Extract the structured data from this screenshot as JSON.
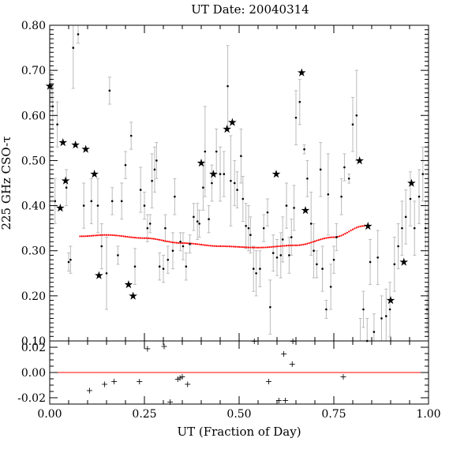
{
  "chart_data": {
    "type": "scatter",
    "title": "UT Date: 20040314",
    "xlabel": "UT (Fraction of Day)",
    "ylabel": "225 GHz CSO-τ",
    "xlim": [
      0,
      1
    ],
    "ylim": [
      0.1,
      0.8
    ],
    "resid_ylim": [
      -0.025,
      0.025
    ],
    "x_ticks": [
      "0.00",
      "0.25",
      "0.50",
      "0.75",
      "1.00"
    ],
    "y_ticks": [
      "0.10",
      "0.20",
      "0.30",
      "0.40",
      "0.50",
      "0.60",
      "0.70",
      "0.80"
    ],
    "resid_y_ticks": [
      "-0.02",
      "0.00",
      "0.02"
    ],
    "colors": {
      "fit": "#ff0000",
      "errorbar": "#bbbbbb",
      "marker": "#000000"
    },
    "points": [
      {
        "x": 0.004,
        "y": 0.665,
        "e": 0.03
      },
      {
        "x": 0.008,
        "y": 0.62,
        "e": 0.05
      },
      {
        "x": 0.014,
        "y": 0.41,
        "e": 0.05
      },
      {
        "x": 0.02,
        "y": 0.58,
        "e": 0.05
      },
      {
        "x": 0.044,
        "y": 0.44,
        "e": 0.04
      },
      {
        "x": 0.05,
        "y": 0.275,
        "e": 0.02
      },
      {
        "x": 0.055,
        "y": 0.28,
        "e": 0.03
      },
      {
        "x": 0.062,
        "y": 0.75,
        "e": 0.09
      },
      {
        "x": 0.075,
        "y": 0.78,
        "e": 0.02
      },
      {
        "x": 0.09,
        "y": 0.4,
        "e": 0.05
      },
      {
        "x": 0.11,
        "y": 0.41,
        "e": 0.05
      },
      {
        "x": 0.127,
        "y": 0.4,
        "e": 0.06
      },
      {
        "x": 0.137,
        "y": 0.31,
        "e": 0.05
      },
      {
        "x": 0.15,
        "y": 0.25,
        "e": 0.08
      },
      {
        "x": 0.158,
        "y": 0.655,
        "e": 0.03
      },
      {
        "x": 0.165,
        "y": 0.41,
        "e": 0.03
      },
      {
        "x": 0.18,
        "y": 0.29,
        "e": 0.02
      },
      {
        "x": 0.19,
        "y": 0.41,
        "e": 0.04
      },
      {
        "x": 0.2,
        "y": 0.49,
        "e": 0.03
      },
      {
        "x": 0.215,
        "y": 0.555,
        "e": 0.03
      },
      {
        "x": 0.225,
        "y": 0.265,
        "e": 0.04
      },
      {
        "x": 0.24,
        "y": 0.435,
        "e": 0.05
      },
      {
        "x": 0.25,
        "y": 0.4,
        "e": 0.03
      },
      {
        "x": 0.258,
        "y": 0.35,
        "e": 0.03
      },
      {
        "x": 0.265,
        "y": 0.36,
        "e": 0.02
      },
      {
        "x": 0.27,
        "y": 0.455,
        "e": 0.06
      },
      {
        "x": 0.277,
        "y": 0.48,
        "e": 0.05
      },
      {
        "x": 0.282,
        "y": 0.5,
        "e": 0.04
      },
      {
        "x": 0.29,
        "y": 0.265,
        "e": 0.03
      },
      {
        "x": 0.3,
        "y": 0.26,
        "e": 0.03
      },
      {
        "x": 0.305,
        "y": 0.35,
        "e": 0.03
      },
      {
        "x": 0.312,
        "y": 0.28,
        "e": 0.03
      },
      {
        "x": 0.325,
        "y": 0.3,
        "e": 0.04
      },
      {
        "x": 0.33,
        "y": 0.42,
        "e": 0.04
      },
      {
        "x": 0.345,
        "y": 0.32,
        "e": 0.02
      },
      {
        "x": 0.352,
        "y": 0.31,
        "e": 0.03
      },
      {
        "x": 0.36,
        "y": 0.265,
        "e": 0.03
      },
      {
        "x": 0.37,
        "y": 0.315,
        "e": 0.02
      },
      {
        "x": 0.38,
        "y": 0.375,
        "e": 0.03
      },
      {
        "x": 0.39,
        "y": 0.365,
        "e": 0.04
      },
      {
        "x": 0.395,
        "y": 0.36,
        "e": 0.03
      },
      {
        "x": 0.405,
        "y": 0.44,
        "e": 0.05
      },
      {
        "x": 0.41,
        "y": 0.52,
        "e": 0.1
      },
      {
        "x": 0.42,
        "y": 0.37,
        "e": 0.03
      },
      {
        "x": 0.428,
        "y": 0.45,
        "e": 0.04
      },
      {
        "x": 0.44,
        "y": 0.52,
        "e": 0.05
      },
      {
        "x": 0.45,
        "y": 0.47,
        "e": 0.06
      },
      {
        "x": 0.46,
        "y": 0.47,
        "e": 0.05
      },
      {
        "x": 0.47,
        "y": 0.665,
        "e": 0.09
      },
      {
        "x": 0.478,
        "y": 0.455,
        "e": 0.1
      },
      {
        "x": 0.488,
        "y": 0.45,
        "e": 0.05
      },
      {
        "x": 0.495,
        "y": 0.435,
        "e": 0.04
      },
      {
        "x": 0.505,
        "y": 0.51,
        "e": 0.06
      },
      {
        "x": 0.51,
        "y": 0.415,
        "e": 0.05
      },
      {
        "x": 0.518,
        "y": 0.355,
        "e": 0.05
      },
      {
        "x": 0.525,
        "y": 0.35,
        "e": 0.05
      },
      {
        "x": 0.53,
        "y": 0.335,
        "e": 0.04
      },
      {
        "x": 0.538,
        "y": 0.26,
        "e": 0.05
      },
      {
        "x": 0.545,
        "y": 0.25,
        "e": 0.05
      },
      {
        "x": 0.555,
        "y": 0.26,
        "e": 0.04
      },
      {
        "x": 0.565,
        "y": 0.35,
        "e": 0.03
      },
      {
        "x": 0.575,
        "y": 0.385,
        "e": 0.03
      },
      {
        "x": 0.582,
        "y": 0.175,
        "e": 0.06
      },
      {
        "x": 0.59,
        "y": 0.295,
        "e": 0.04
      },
      {
        "x": 0.6,
        "y": 0.285,
        "e": 0.04
      },
      {
        "x": 0.61,
        "y": 0.29,
        "e": 0.05
      },
      {
        "x": 0.615,
        "y": 0.325,
        "e": 0.05
      },
      {
        "x": 0.625,
        "y": 0.4,
        "e": 0.05
      },
      {
        "x": 0.632,
        "y": 0.29,
        "e": 0.04
      },
      {
        "x": 0.638,
        "y": 0.33,
        "e": 0.04
      },
      {
        "x": 0.645,
        "y": 0.395,
        "e": 0.05
      },
      {
        "x": 0.65,
        "y": 0.595,
        "e": 0.06
      },
      {
        "x": 0.66,
        "y": 0.63,
        "e": 0.05
      },
      {
        "x": 0.672,
        "y": 0.525,
        "e": 0.01
      },
      {
        "x": 0.68,
        "y": 0.46,
        "e": 0.04
      },
      {
        "x": 0.69,
        "y": 0.36,
        "e": 0.07
      },
      {
        "x": 0.697,
        "y": 0.3,
        "e": 0.06
      },
      {
        "x": 0.705,
        "y": 0.27,
        "e": 0.03
      },
      {
        "x": 0.715,
        "y": 0.48,
        "e": 0.06
      },
      {
        "x": 0.72,
        "y": 0.26,
        "e": 0.05
      },
      {
        "x": 0.73,
        "y": 0.17,
        "e": 0.02
      },
      {
        "x": 0.735,
        "y": 0.425,
        "e": 0.09
      },
      {
        "x": 0.742,
        "y": 0.22,
        "e": 0.05
      },
      {
        "x": 0.75,
        "y": 0.28,
        "e": 0.03
      },
      {
        "x": 0.757,
        "y": 0.33,
        "e": 0.03
      },
      {
        "x": 0.77,
        "y": 0.42,
        "e": 0.04
      },
      {
        "x": 0.778,
        "y": 0.485,
        "e": 0.03
      },
      {
        "x": 0.79,
        "y": 0.46,
        "e": 0.01
      },
      {
        "x": 0.8,
        "y": 0.58,
        "e": 0.06
      },
      {
        "x": 0.81,
        "y": 0.6,
        "e": 0.1
      },
      {
        "x": 0.82,
        "y": 0.09,
        "e": 0.06
      },
      {
        "x": 0.828,
        "y": 0.17,
        "e": 0.04
      },
      {
        "x": 0.838,
        "y": 0.1,
        "e": 0.05
      },
      {
        "x": 0.846,
        "y": 0.275,
        "e": 0.05
      },
      {
        "x": 0.856,
        "y": 0.12,
        "e": 0.04
      },
      {
        "x": 0.866,
        "y": 0.285,
        "e": 0.06
      },
      {
        "x": 0.876,
        "y": 0.15,
        "e": 0.05
      },
      {
        "x": 0.888,
        "y": 0.155,
        "e": 0.06
      },
      {
        "x": 0.898,
        "y": 0.17,
        "e": 0.06
      },
      {
        "x": 0.91,
        "y": 0.27,
        "e": 0.06
      },
      {
        "x": 0.92,
        "y": 0.31,
        "e": 0.05
      },
      {
        "x": 0.93,
        "y": 0.35,
        "e": 0.06
      },
      {
        "x": 0.94,
        "y": 0.375,
        "e": 0.06
      },
      {
        "x": 0.952,
        "y": 0.415,
        "e": 0.06
      },
      {
        "x": 0.963,
        "y": 0.35,
        "e": 0.06
      },
      {
        "x": 0.975,
        "y": 0.42,
        "e": 0.06
      },
      {
        "x": 0.985,
        "y": 0.47,
        "e": 0.06
      },
      {
        "x": 0.992,
        "y": 0.35,
        "e": 0.06
      },
      {
        "x": 0.996,
        "y": 0.17,
        "e": 0.05
      }
    ],
    "stars": [
      {
        "x": 0.0,
        "y": 0.665
      },
      {
        "x": 0.028,
        "y": 0.395
      },
      {
        "x": 0.035,
        "y": 0.54
      },
      {
        "x": 0.042,
        "y": 0.455
      },
      {
        "x": 0.068,
        "y": 0.535
      },
      {
        "x": 0.095,
        "y": 0.525
      },
      {
        "x": 0.118,
        "y": 0.47
      },
      {
        "x": 0.13,
        "y": 0.245
      },
      {
        "x": 0.208,
        "y": 0.225
      },
      {
        "x": 0.22,
        "y": 0.2
      },
      {
        "x": 0.4,
        "y": 0.495
      },
      {
        "x": 0.432,
        "y": 0.47
      },
      {
        "x": 0.468,
        "y": 0.57
      },
      {
        "x": 0.482,
        "y": 0.585
      },
      {
        "x": 0.598,
        "y": 0.47
      },
      {
        "x": 0.665,
        "y": 0.695
      },
      {
        "x": 0.675,
        "y": 0.39
      },
      {
        "x": 0.818,
        "y": 0.5
      },
      {
        "x": 0.84,
        "y": 0.355
      },
      {
        "x": 0.9,
        "y": 0.19
      },
      {
        "x": 0.935,
        "y": 0.275
      },
      {
        "x": 0.955,
        "y": 0.45
      }
    ],
    "fit": {
      "x_start": 0.08,
      "x_end": 0.83,
      "x": [
        0.08,
        0.15,
        0.25,
        0.35,
        0.45,
        0.55,
        0.65,
        0.75,
        0.83
      ],
      "y": [
        0.332,
        0.335,
        0.328,
        0.317,
        0.31,
        0.307,
        0.312,
        0.33,
        0.355
      ]
    },
    "residuals": [
      {
        "x": 0.105,
        "y": -0.014
      },
      {
        "x": 0.145,
        "y": -0.009
      },
      {
        "x": 0.17,
        "y": -0.007
      },
      {
        "x": 0.237,
        "y": -0.007
      },
      {
        "x": 0.258,
        "y": 0.019
      },
      {
        "x": 0.302,
        "y": 0.021
      },
      {
        "x": 0.318,
        "y": -0.023
      },
      {
        "x": 0.338,
        "y": -0.005
      },
      {
        "x": 0.344,
        "y": -0.004
      },
      {
        "x": 0.35,
        "y": -0.003
      },
      {
        "x": 0.364,
        "y": -0.009
      },
      {
        "x": 0.54,
        "y": 0.025
      },
      {
        "x": 0.578,
        "y": -0.007
      },
      {
        "x": 0.605,
        "y": -0.022
      },
      {
        "x": 0.618,
        "y": 0.015
      },
      {
        "x": 0.622,
        "y": -0.022
      },
      {
        "x": 0.64,
        "y": 0.007
      },
      {
        "x": 0.642,
        "y": 0.025
      },
      {
        "x": 0.775,
        "y": -0.003
      }
    ]
  }
}
